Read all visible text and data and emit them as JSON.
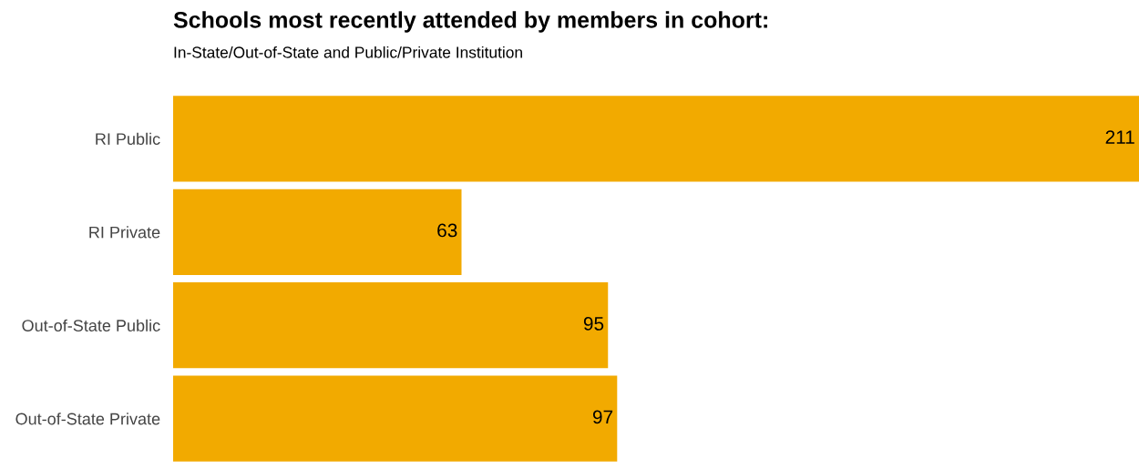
{
  "chart_data": {
    "type": "bar",
    "orientation": "horizontal",
    "title": "Schools most recently attended by members in cohort:",
    "subtitle": "In-State/Out-of-State and Public/Private Institution",
    "categories": [
      "RI Public",
      "RI Private",
      "Out-of-State Public",
      "Out-of-State Private"
    ],
    "values": [
      211,
      63,
      95,
      97
    ],
    "color": "#f2aa00",
    "data_labels": true,
    "grid": false,
    "legend": false
  }
}
